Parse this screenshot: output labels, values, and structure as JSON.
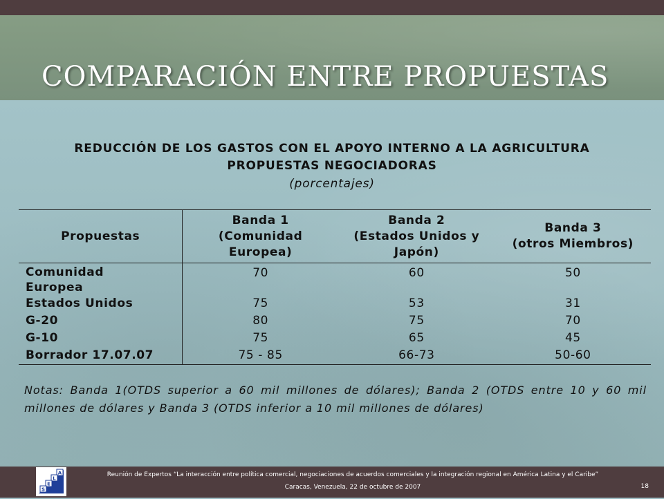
{
  "slide": {
    "title": "COMPARACIÓN ENTRE PROPUESTAS"
  },
  "table": {
    "title_line1": "REDUCCIÓN DE LOS GASTOS CON EL APOYO INTERNO A LA AGRICULTURA",
    "title_line2": "PROPUESTAS NEGOCIADORAS",
    "subtitle": "(porcentajes)",
    "headers": {
      "col0": "Propuestas",
      "col1_line1": "Banda 1",
      "col1_line2": "(Comunidad",
      "col1_line3": "Europea)",
      "col2_line1": "Banda 2",
      "col2_line2": "(Estados Unidos y",
      "col2_line3": "Japón)",
      "col3_line1": "Banda 3",
      "col3_line2": "(otros Miembros)"
    },
    "rows": [
      {
        "proposal_line1": "Comunidad",
        "proposal_line2": "Europea",
        "band1": "70",
        "band2": "60",
        "band3": "50"
      },
      {
        "proposal": "Estados Unidos",
        "band1": "75",
        "band2": "53",
        "band3": "31"
      },
      {
        "proposal": "G-20",
        "band1": "80",
        "band2": "75",
        "band3": "70"
      },
      {
        "proposal": "G-10",
        "band1": "75",
        "band2": "65",
        "band3": "45"
      },
      {
        "proposal": "Borrador 17.07.07",
        "band1": "75 - 85",
        "band2": "66-73",
        "band3": "50-60"
      }
    ],
    "notes": "Notas: Banda 1(OTDS superior a 60 mil millones de dólares); Banda 2 (OTDS entre 10 y 60 mil millones de dólares y Banda 3 (OTDS inferior a 10 mil millones de dólares)"
  },
  "footer": {
    "line1": "Reunión de Expertos “La interacción entre política comercial, negociaciones de acuerdos comerciales y la integración regional en América Latina y el Caribe”",
    "line2": "Caracas, Venezuela, 22 de octubre de 2007",
    "page": "18",
    "logo_letters": [
      "S",
      "E",
      "L",
      "A"
    ]
  },
  "colors": {
    "title_band": "#7f9680",
    "content_bg": "#9dbdc3",
    "bars": "#4f3d3f",
    "logo_blue": "#1f3f99"
  }
}
